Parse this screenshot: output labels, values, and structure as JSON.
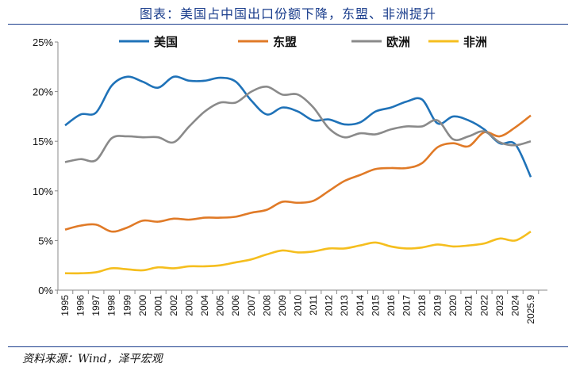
{
  "title": "图表：美国占中国出口份额下降，东盟、非洲提升",
  "source": "资料来源：Wind，泽平宏观",
  "chart_data": {
    "type": "line",
    "title": "图表：美国占中国出口份额下降，东盟、非洲提升",
    "xlabel": "",
    "ylabel": "",
    "ylim": [
      0,
      25
    ],
    "yticks": [
      "0%",
      "5%",
      "10%",
      "15%",
      "20%",
      "25%"
    ],
    "grid": false,
    "legend": "top",
    "categories": [
      "1995",
      "1996",
      "1997",
      "1998",
      "1999",
      "2000",
      "2001",
      "2002",
      "2003",
      "2004",
      "2005",
      "2006",
      "2007",
      "2008",
      "2009",
      "2010",
      "2011",
      "2012",
      "2013",
      "2014",
      "2015",
      "2016",
      "2017",
      "2018",
      "2019",
      "2020",
      "2021",
      "2022",
      "2023",
      "2024",
      "2025.9"
    ],
    "series": [
      {
        "name": "美国",
        "color": "#1f72b8",
        "values": [
          16.6,
          17.7,
          17.9,
          20.6,
          21.5,
          21.0,
          20.4,
          21.5,
          21.1,
          21.1,
          21.4,
          21.0,
          19.1,
          17.7,
          18.4,
          18.0,
          17.1,
          17.2,
          16.7,
          16.9,
          18.0,
          18.4,
          19.0,
          19.2,
          16.8,
          17.5,
          17.1,
          16.2,
          14.8,
          14.7,
          11.4
        ]
      },
      {
        "name": "东盟",
        "color": "#e07a27",
        "values": [
          6.1,
          6.5,
          6.6,
          5.9,
          6.3,
          7.0,
          6.9,
          7.2,
          7.1,
          7.3,
          7.3,
          7.4,
          7.8,
          8.1,
          8.9,
          8.8,
          9.0,
          10.0,
          11.0,
          11.6,
          12.2,
          12.3,
          12.3,
          12.8,
          14.4,
          14.8,
          14.5,
          15.9,
          15.5,
          16.4,
          17.6
        ]
      },
      {
        "name": "欧洲",
        "color": "#8a8a8a",
        "values": [
          12.9,
          13.2,
          13.1,
          15.3,
          15.5,
          15.4,
          15.4,
          14.9,
          16.5,
          18.0,
          18.9,
          18.9,
          20.0,
          20.5,
          19.7,
          19.7,
          18.4,
          16.3,
          15.4,
          15.8,
          15.7,
          16.2,
          16.5,
          16.5,
          17.1,
          15.2,
          15.5,
          16.0,
          14.9,
          14.6,
          15.0
        ]
      },
      {
        "name": "非洲",
        "color": "#f5be1e",
        "values": [
          1.7,
          1.7,
          1.8,
          2.2,
          2.1,
          2.0,
          2.3,
          2.2,
          2.4,
          2.4,
          2.5,
          2.8,
          3.1,
          3.6,
          4.0,
          3.8,
          3.9,
          4.2,
          4.2,
          4.5,
          4.8,
          4.4,
          4.2,
          4.3,
          4.6,
          4.4,
          4.5,
          4.7,
          5.2,
          5.0,
          5.9
        ]
      }
    ]
  }
}
